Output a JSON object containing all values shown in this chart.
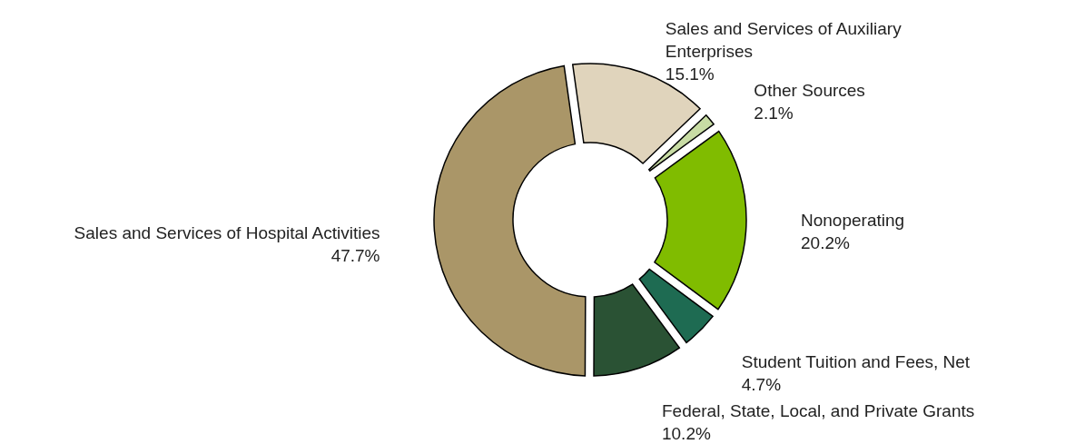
{
  "chart_data": {
    "type": "donut",
    "categories": [
      "Sales and Services of Auxiliary Enterprises",
      "Other Sources",
      "Nonoperating",
      "Student Tuition and Fees, Net",
      "Federal, State, Local, and Private Grants",
      "Sales and Services of Hospital Activities"
    ],
    "values": [
      15.1,
      2.1,
      20.2,
      4.7,
      10.2,
      47.7
    ],
    "colors": [
      "#e0d4bc",
      "#c8dca4",
      "#80bc00",
      "#1e6b52",
      "#2a5234",
      "#aa9668"
    ],
    "value_labels": [
      "15.1%",
      "2.1%",
      "20.2%",
      "4.7%",
      "10.2%",
      "47.7%"
    ]
  }
}
